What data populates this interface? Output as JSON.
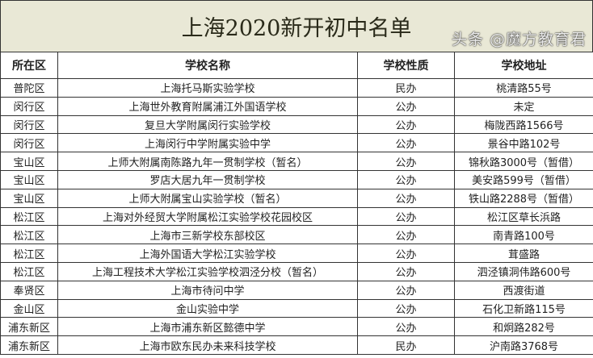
{
  "title": "上海2020新开初中名单",
  "columns": [
    "所在区",
    "学校名称",
    "学校性质",
    "学校地址"
  ],
  "rows": [
    [
      "普陀区",
      "上海托马斯实验学校",
      "民办",
      "桃清路55号"
    ],
    [
      "闵行区",
      "上海世外教育附属浦江外国语学校",
      "公办",
      "未定"
    ],
    [
      "闵行区",
      "复旦大学附属闵行实验学校",
      "公办",
      "梅陇西路1566号"
    ],
    [
      "闵行区",
      "上海闵行中学附属实验中学",
      "公办",
      "景谷中路102号"
    ],
    [
      "宝山区",
      "上师大附属南陈路九年一贯制学校（暂名）",
      "公办",
      "锦秋路3000号（暂借）"
    ],
    [
      "宝山区",
      "罗店大居九年一贯制学校",
      "公办",
      "美安路599号（暂借）"
    ],
    [
      "宝山区",
      "上师大附属宝山实验学校（暂名）",
      "公办",
      "铁山路2288号（暂借）"
    ],
    [
      "松江区",
      "上海对外经贸大学附属松江实验学校花园校区",
      "公办",
      "松江区草长浜路"
    ],
    [
      "松江区",
      "上海市三新学校东部校区",
      "公办",
      "南青路100号"
    ],
    [
      "松江区",
      "上海外国语大学松江实验学校",
      "公办",
      "茸盛路"
    ],
    [
      "松江区",
      "上海工程技术大学松江实验学校泗泾分校（暂名）",
      "公办",
      "泗泾镇洞伟路600号"
    ],
    [
      "奉贤区",
      "上海市待问中学",
      "公办",
      "西渡街道"
    ],
    [
      "金山区",
      "金山实验中学",
      "公办",
      "石化卫新路115号"
    ],
    [
      "浦东新区",
      "上海市浦东新区懿德中学",
      "公办",
      "和炯路282号"
    ],
    [
      "浦东新区",
      "上海市欧东民办未来科技学校",
      "民办",
      "沪南路3768号"
    ]
  ],
  "watermark": "头条 @魔方教育君"
}
